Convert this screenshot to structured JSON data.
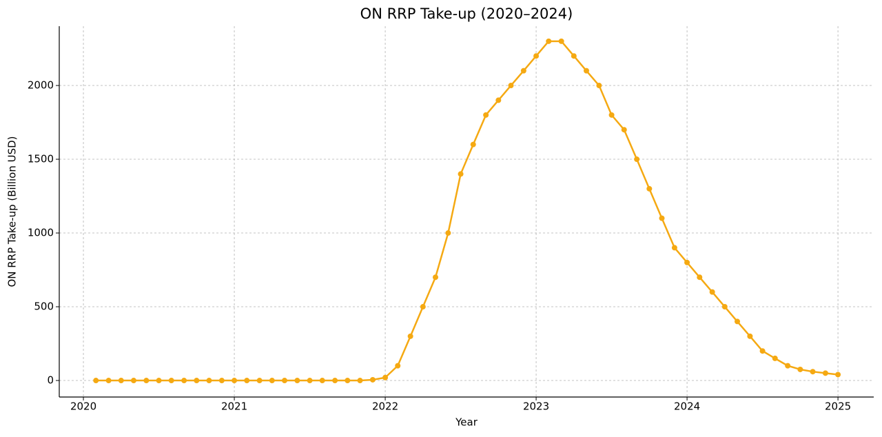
{
  "chart_data": {
    "type": "line",
    "title": "ON RRP Take-up (2020–2024)",
    "x_label": "Year",
    "y_label": "ON RRP Take-up (Billion USD)",
    "x": [
      2020.083,
      2020.167,
      2020.25,
      2020.333,
      2020.417,
      2020.5,
      2020.583,
      2020.667,
      2020.75,
      2020.833,
      2020.917,
      2021.0,
      2021.083,
      2021.167,
      2021.25,
      2021.333,
      2021.417,
      2021.5,
      2021.583,
      2021.667,
      2021.75,
      2021.833,
      2021.917,
      2022.0,
      2022.083,
      2022.167,
      2022.25,
      2022.333,
      2022.417,
      2022.5,
      2022.583,
      2022.667,
      2022.75,
      2022.833,
      2022.917,
      2023.0,
      2023.083,
      2023.167,
      2023.25,
      2023.333,
      2023.417,
      2023.5,
      2023.583,
      2023.667,
      2023.75,
      2023.833,
      2023.917,
      2024.0,
      2024.083,
      2024.167,
      2024.25,
      2024.333,
      2024.417,
      2024.5,
      2024.583,
      2024.667,
      2024.75,
      2024.833,
      2024.917,
      2025.0
    ],
    "series": [
      {
        "name": "ON RRP",
        "color": "#f5a912",
        "values": [
          0,
          0,
          0,
          0,
          0,
          0,
          0,
          0,
          0,
          0,
          0,
          0,
          0,
          0,
          0,
          0,
          0,
          0,
          0,
          0,
          0,
          0,
          5,
          20,
          100,
          300,
          500,
          700,
          1000,
          1400,
          1600,
          1800,
          1900,
          2000,
          2100,
          2200,
          2300,
          2300,
          2200,
          2100,
          2000,
          1800,
          1700,
          1500,
          1300,
          1100,
          900,
          800,
          700,
          600,
          500,
          400,
          300,
          200,
          150,
          100,
          75,
          60,
          50,
          40
        ]
      }
    ],
    "xlim": [
      2019.84,
      2025.237
    ],
    "xticks": [
      2020,
      2021,
      2022,
      2023,
      2024,
      2025
    ],
    "ylim": [
      -112,
      2402
    ],
    "yticks": [
      0,
      500,
      1000,
      1500,
      2000
    ],
    "grid": true
  }
}
